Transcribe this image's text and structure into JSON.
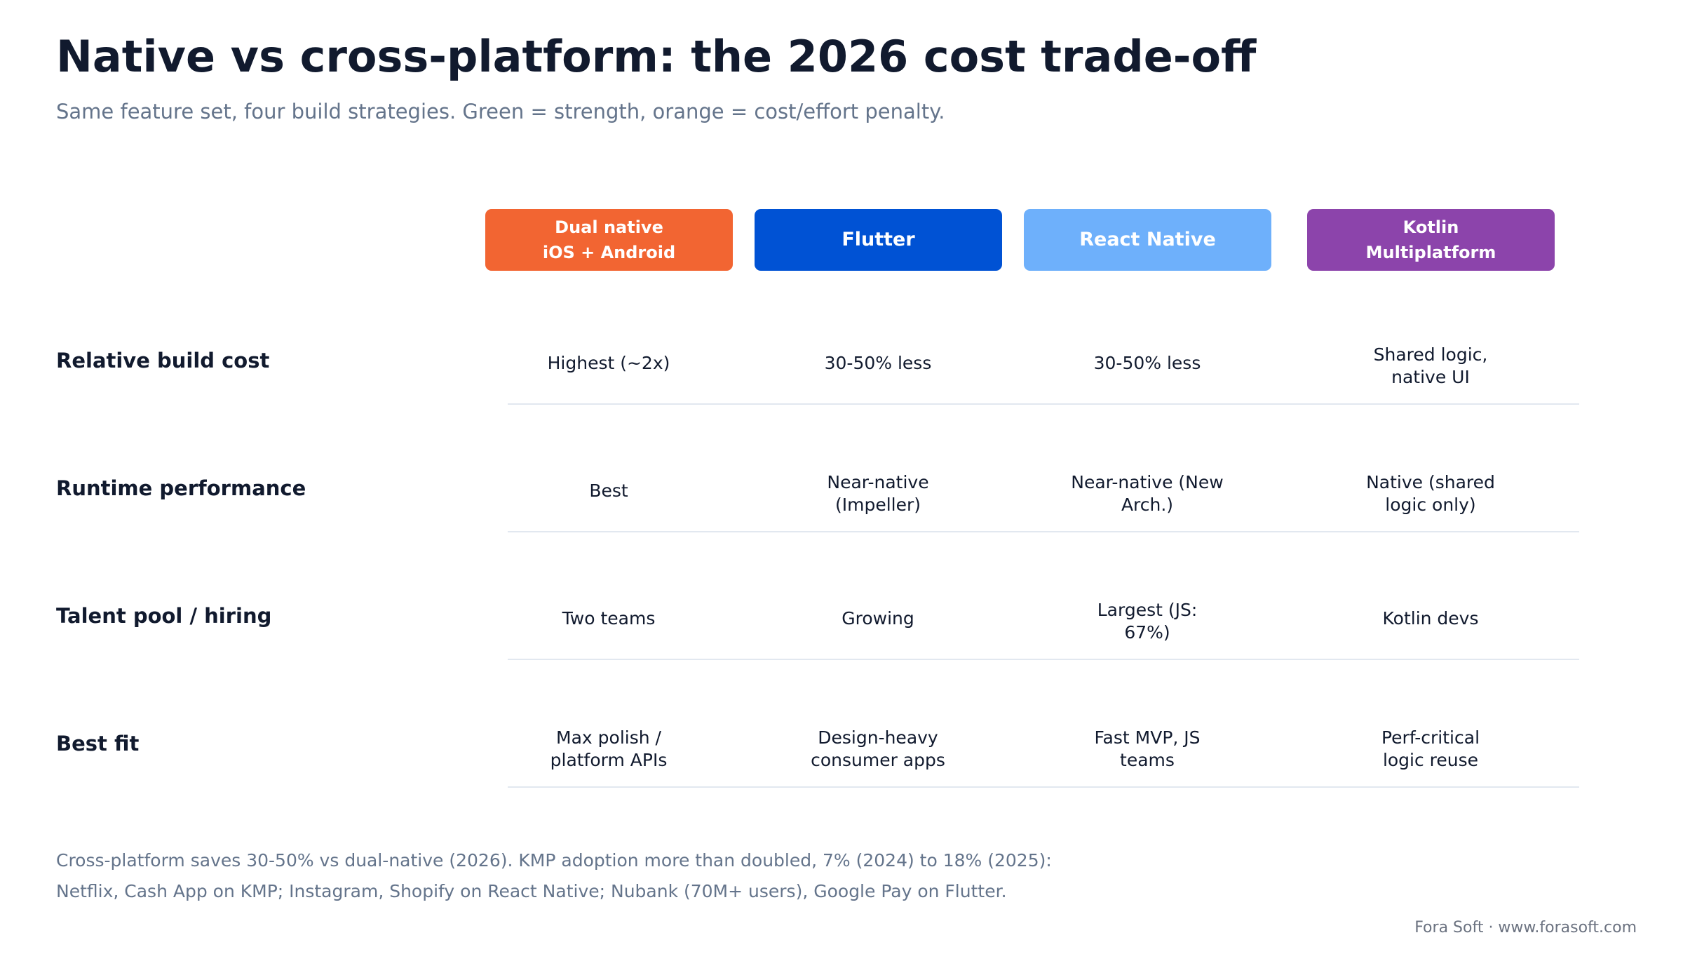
{
  "title": "Native vs cross-platform: the 2026 cost trade-off",
  "subtitle": "Same feature set, four build strategies. Green = strength, orange = cost/effort penalty.",
  "columns": [
    {
      "label": "Dual native\niOS + Android",
      "color": "#f26532"
    },
    {
      "label": "Flutter",
      "color": "#0052d4"
    },
    {
      "label": "React Native",
      "color": "#6eb0fb"
    },
    {
      "label": "Kotlin\nMultiplatform",
      "color": "#8c44ab"
    }
  ],
  "rows": [
    {
      "label": "Relative build cost",
      "cells": [
        "Highest (~2x)",
        "30-50% less",
        "30-50% less",
        "Shared logic,\nnative UI"
      ]
    },
    {
      "label": "Runtime performance",
      "cells": [
        "Best",
        "Near-native\n(Impeller)",
        "Near-native (New\nArch.)",
        "Native (shared\nlogic only)"
      ]
    },
    {
      "label": "Talent pool / hiring",
      "cells": [
        "Two teams",
        "Growing",
        "Largest (JS:\n67%)",
        "Kotlin devs"
      ]
    },
    {
      "label": "Best fit",
      "cells": [
        "Max polish /\nplatform APIs",
        "Design-heavy\nconsumer apps",
        "Fast MVP, JS\nteams",
        "Perf-critical\nlogic reuse"
      ]
    }
  ],
  "footnotes": [
    "Cross-platform saves 30-50% vs dual-native (2026). KMP adoption more than doubled, 7% (2024) to 18% (2025):",
    "Netflix, Cash App on KMP; Instagram, Shopify on React Native; Nubank (70M+ users), Google Pay on Flutter."
  ],
  "credit": "Fora Soft · www.forasoft.com"
}
